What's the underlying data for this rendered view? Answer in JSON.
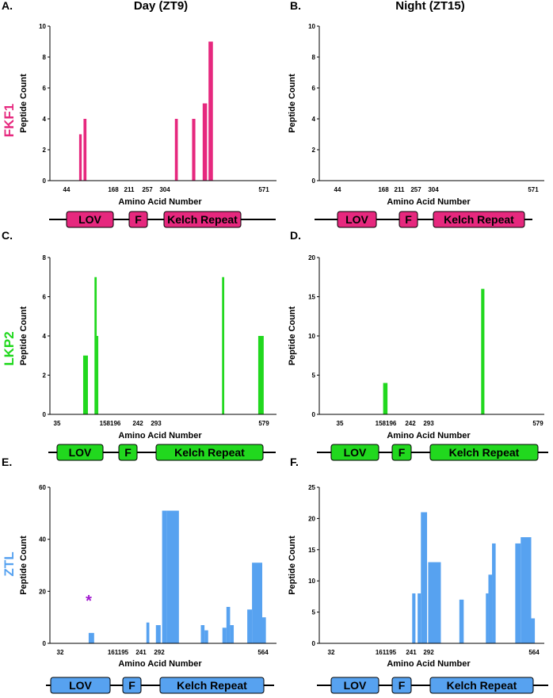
{
  "column_titles": {
    "day": "Day (ZT9)",
    "night": "Night (ZT15)"
  },
  "colors": {
    "FKF1": "#e6287e",
    "LKP2": "#21d81e",
    "ZTL": "#57a2f0",
    "asterisk": "#a21ad0"
  },
  "domain_labels": {
    "lov": "LOV",
    "f": "F",
    "kelch": "Kelch Repeat"
  },
  "chart_data": [
    {
      "id": "A",
      "letter": "A.",
      "protein": "FKF1",
      "type": "bar",
      "title": "Day (ZT9)",
      "xlabel": "Amino Acid Number",
      "ylabel": "Peptide Count",
      "xlim": [
        0,
        620
      ],
      "ylim": [
        0,
        10
      ],
      "yticks": [
        0,
        2,
        4,
        6,
        8,
        10
      ],
      "xticks": [
        "44",
        "168",
        "211",
        "257",
        "304",
        "571"
      ],
      "bars": [
        {
          "start": 80,
          "end": 87,
          "value": 3
        },
        {
          "start": 92,
          "end": 100,
          "value": 4
        },
        {
          "start": 342,
          "end": 350,
          "value": 4
        },
        {
          "start": 389,
          "end": 398,
          "value": 4
        },
        {
          "start": 418,
          "end": 430,
          "value": 5
        },
        {
          "start": 434,
          "end": 446,
          "value": 9
        }
      ]
    },
    {
      "id": "B",
      "letter": "B.",
      "protein": "FKF1",
      "type": "bar",
      "title": "Night (ZT15)",
      "xlabel": "Amino Acid Number",
      "ylabel": "Peptide Count",
      "xlim": [
        0,
        620
      ],
      "ylim": [
        0,
        10
      ],
      "yticks": [
        0,
        2,
        4,
        6,
        8,
        10
      ],
      "xticks": [
        "44",
        "168",
        "211",
        "257",
        "304",
        "571"
      ],
      "bars": []
    },
    {
      "id": "C",
      "letter": "C.",
      "protein": "LKP2",
      "type": "bar",
      "title": "",
      "xlabel": "Amino Acid Number",
      "ylabel": "Peptide Count",
      "xlim": [
        0,
        620
      ],
      "ylim": [
        0,
        8
      ],
      "yticks": [
        0,
        2,
        4,
        6,
        8
      ],
      "xticks": [
        "35",
        "158196",
        "242",
        "293",
        "579"
      ],
      "bars": [
        {
          "start": 91,
          "end": 104,
          "value": 3
        },
        {
          "start": 122,
          "end": 128,
          "value": 7
        },
        {
          "start": 128,
          "end": 132,
          "value": 4
        },
        {
          "start": 471,
          "end": 477,
          "value": 7
        },
        {
          "start": 570,
          "end": 585,
          "value": 4
        }
      ]
    },
    {
      "id": "D",
      "letter": "D.",
      "protein": "LKP2",
      "type": "bar",
      "title": "",
      "xlabel": "Amino Acid Number",
      "ylabel": "Peptide Count",
      "xlim": [
        0,
        620
      ],
      "ylim": [
        0,
        20
      ],
      "yticks": [
        0,
        5,
        10,
        15,
        20
      ],
      "xticks": [
        "35",
        "158196",
        "242",
        "293",
        "579"
      ],
      "bars": [
        {
          "start": 176,
          "end": 188,
          "value": 4
        },
        {
          "start": 446,
          "end": 455,
          "value": 16
        }
      ]
    },
    {
      "id": "E",
      "letter": "E.",
      "protein": "ZTL",
      "type": "bar",
      "title": "",
      "xlabel": "Amino Acid Number",
      "ylabel": "Peptide Count",
      "xlim": [
        0,
        620
      ],
      "ylim": [
        0,
        60
      ],
      "yticks": [
        0,
        20,
        40,
        60
      ],
      "xticks": [
        "32",
        "161195",
        "241",
        "292",
        "564"
      ],
      "annotation": "*",
      "bars": [
        {
          "start": 106,
          "end": 121,
          "value": 4
        },
        {
          "start": 264,
          "end": 272,
          "value": 8
        },
        {
          "start": 290,
          "end": 303,
          "value": 7
        },
        {
          "start": 307,
          "end": 320,
          "value": 51
        },
        {
          "start": 320,
          "end": 353,
          "value": 51
        },
        {
          "start": 413,
          "end": 423,
          "value": 7
        },
        {
          "start": 423,
          "end": 433,
          "value": 5
        },
        {
          "start": 472,
          "end": 483,
          "value": 6
        },
        {
          "start": 483,
          "end": 493,
          "value": 14
        },
        {
          "start": 493,
          "end": 503,
          "value": 7
        },
        {
          "start": 540,
          "end": 553,
          "value": 13
        },
        {
          "start": 553,
          "end": 581,
          "value": 31
        },
        {
          "start": 581,
          "end": 591,
          "value": 10
        }
      ]
    },
    {
      "id": "F",
      "letter": "F.",
      "protein": "ZTL",
      "type": "bar",
      "title": "",
      "xlabel": "Amino Acid Number",
      "ylabel": "Peptide Count",
      "xlim": [
        0,
        620
      ],
      "ylim": [
        0,
        25
      ],
      "yticks": [
        0,
        5,
        10,
        15,
        20,
        25
      ],
      "xticks": [
        "32",
        "161195",
        "241",
        "292",
        "564"
      ],
      "bars": [
        {
          "start": 256,
          "end": 265,
          "value": 8
        },
        {
          "start": 271,
          "end": 280,
          "value": 8
        },
        {
          "start": 280,
          "end": 297,
          "value": 21
        },
        {
          "start": 300,
          "end": 335,
          "value": 13
        },
        {
          "start": 386,
          "end": 398,
          "value": 7
        },
        {
          "start": 459,
          "end": 466,
          "value": 8
        },
        {
          "start": 466,
          "end": 476,
          "value": 11
        },
        {
          "start": 476,
          "end": 486,
          "value": 16
        },
        {
          "start": 540,
          "end": 555,
          "value": 16
        },
        {
          "start": 555,
          "end": 584,
          "value": 17
        },
        {
          "start": 584,
          "end": 594,
          "value": 4
        }
      ]
    }
  ]
}
